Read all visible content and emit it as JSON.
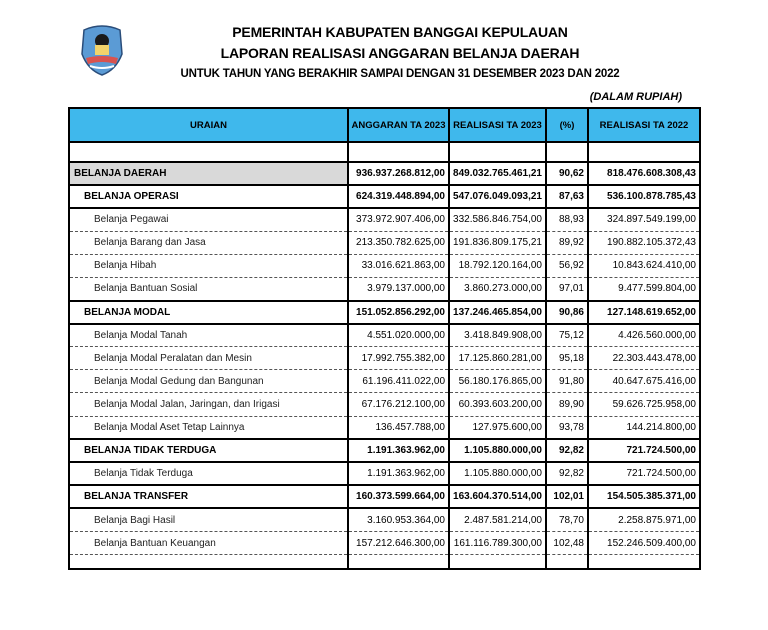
{
  "header": {
    "title1": "PEMERINTAH KABUPATEN BANGGAI KEPULAUAN",
    "title2": "LAPORAN REALISASI ANGGARAN BELANJA DAERAH",
    "title3": "UNTUK TAHUN YANG BERAKHIR SAMPAI DENGAN 31 DESEMBER 2023 DAN 2022",
    "unit": "(DALAM RUPIAH)",
    "logo": "regency-emblem"
  },
  "table": {
    "columns": [
      "URAIAN",
      "ANGGARAN TA 2023",
      "REALISASI TA 2023",
      "(%)",
      "REALISASI TA 2022"
    ],
    "header_color": "#3fb8ec",
    "rows": [
      {
        "type": "top",
        "label": "BELANJA DAERAH",
        "anggaran": "936.937.268.812,00",
        "realisasi": "849.032.765.461,21",
        "pct": "90,62",
        "realisasi2022": "818.476.608.308,43"
      },
      {
        "type": "bold",
        "label": "BELANJA OPERASI",
        "anggaran": "624.319.448.894,00",
        "realisasi": "547.076.049.093,21",
        "pct": "87,63",
        "realisasi2022": "536.100.878.785,43"
      },
      {
        "type": "sub",
        "label": "Belanja Pegawai",
        "anggaran": "373.972.907.406,00",
        "realisasi": "332.586.846.754,00",
        "pct": "88,93",
        "realisasi2022": "324.897.549.199,00"
      },
      {
        "type": "sub",
        "label": "Belanja Barang dan Jasa",
        "anggaran": "213.350.782.625,00",
        "realisasi": "191.836.809.175,21",
        "pct": "89,92",
        "realisasi2022": "190.882.105.372,43"
      },
      {
        "type": "sub",
        "label": "Belanja Hibah",
        "anggaran": "33.016.621.863,00",
        "realisasi": "18.792.120.164,00",
        "pct": "56,92",
        "realisasi2022": "10.843.624.410,00"
      },
      {
        "type": "sub",
        "label": "Belanja Bantuan Sosial",
        "anggaran": "3.979.137.000,00",
        "realisasi": "3.860.273.000,00",
        "pct": "97,01",
        "realisasi2022": "9.477.599.804,00"
      },
      {
        "type": "bold",
        "label": "BELANJA MODAL",
        "anggaran": "151.052.856.292,00",
        "realisasi": "137.246.465.854,00",
        "pct": "90,86",
        "realisasi2022": "127.148.619.652,00"
      },
      {
        "type": "sub",
        "label": "Belanja Modal Tanah",
        "anggaran": "4.551.020.000,00",
        "realisasi": "3.418.849.908,00",
        "pct": "75,12",
        "realisasi2022": "4.426.560.000,00"
      },
      {
        "type": "sub",
        "label": "Belanja Modal Peralatan dan Mesin",
        "anggaran": "17.992.755.382,00",
        "realisasi": "17.125.860.281,00",
        "pct": "95,18",
        "realisasi2022": "22.303.443.478,00"
      },
      {
        "type": "sub",
        "label": "Belanja Modal Gedung dan Bangunan",
        "anggaran": "61.196.411.022,00",
        "realisasi": "56.180.176.865,00",
        "pct": "91,80",
        "realisasi2022": "40.647.675.416,00"
      },
      {
        "type": "sub",
        "label": "Belanja Modal Jalan, Jaringan, dan Irigasi",
        "anggaran": "67.176.212.100,00",
        "realisasi": "60.393.603.200,00",
        "pct": "89,90",
        "realisasi2022": "59.626.725.958,00"
      },
      {
        "type": "sub",
        "label": "Belanja Modal Aset Tetap Lainnya",
        "anggaran": "136.457.788,00",
        "realisasi": "127.975.600,00",
        "pct": "93,78",
        "realisasi2022": "144.214.800,00"
      },
      {
        "type": "bold",
        "label": "BELANJA TIDAK TERDUGA",
        "anggaran": "1.191.363.962,00",
        "realisasi": "1.105.880.000,00",
        "pct": "92,82",
        "realisasi2022": "721.724.500,00"
      },
      {
        "type": "sub",
        "label": "Belanja Tidak Terduga",
        "anggaran": "1.191.363.962,00",
        "realisasi": "1.105.880.000,00",
        "pct": "92,82",
        "realisasi2022": "721.724.500,00"
      },
      {
        "type": "bold",
        "label": "BELANJA TRANSFER",
        "anggaran": "160.373.599.664,00",
        "realisasi": "163.604.370.514,00",
        "pct": "102,01",
        "realisasi2022": "154.505.385.371,00"
      },
      {
        "type": "sub",
        "label": "Belanja Bagi Hasil",
        "anggaran": "3.160.953.364,00",
        "realisasi": "2.487.581.214,00",
        "pct": "78,70",
        "realisasi2022": "2.258.875.971,00"
      },
      {
        "type": "sub",
        "label": "Belanja Bantuan Keuangan",
        "anggaran": "157.212.646.300,00",
        "realisasi": "161.116.789.300,00",
        "pct": "102,48",
        "realisasi2022": "152.246.509.400,00"
      }
    ]
  }
}
